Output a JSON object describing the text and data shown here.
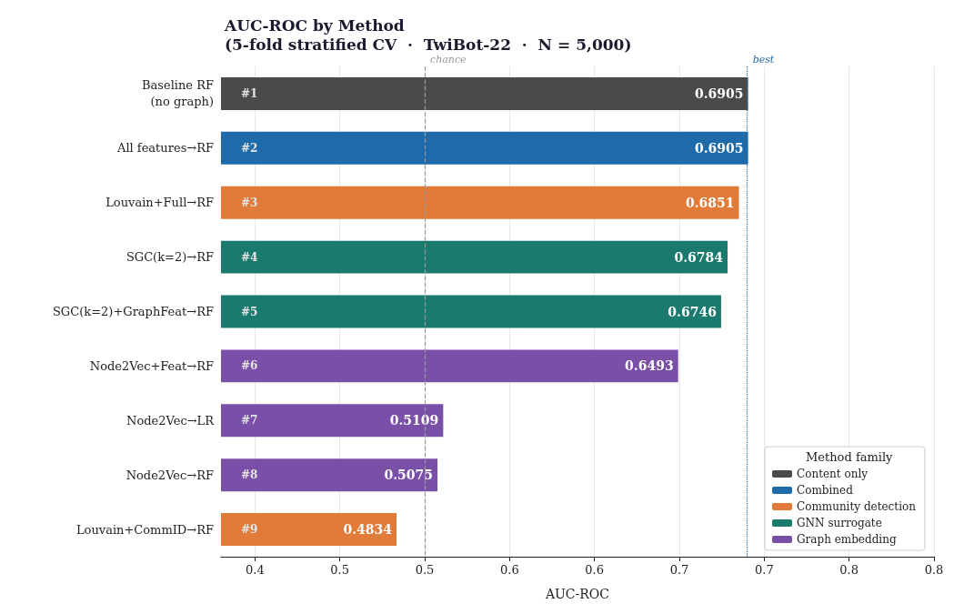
{
  "chart_data": {
    "type": "bar",
    "orientation": "horizontal",
    "title": "AUC-ROC by Method",
    "subtitle": "(5-fold stratified CV  ·  TwiBot-22  ·  N = 5,000)",
    "xlabel": "AUC-ROC",
    "legend_title": "Method family",
    "categories": [
      "Baseline RF\n(no graph)",
      "All features→RF",
      "Louvain+Full→RF",
      "SGC(k=2)→RF",
      "SGC(k=2)+GraphFeat→RF",
      "Node2Vec+Feat→RF",
      "Node2Vec→LR",
      "Node2Vec→RF",
      "Louvain+CommID→RF"
    ],
    "series": [
      {
        "name": "Content only",
        "color": "#4a4a4a",
        "values": [
          0.6905,
          null,
          null,
          null,
          null,
          null,
          null,
          null,
          null
        ]
      },
      {
        "name": "Combined",
        "color": "#1f6aa8",
        "values": [
          null,
          0.6905,
          null,
          null,
          null,
          null,
          null,
          null,
          null
        ]
      },
      {
        "name": "Community detection",
        "color": "#e07b39",
        "values": [
          null,
          null,
          0.6851,
          null,
          null,
          null,
          null,
          null,
          0.4834
        ]
      },
      {
        "name": "GNN surrogate",
        "color": "#1a7a6e",
        "values": [
          null,
          null,
          null,
          0.6784,
          0.6746,
          null,
          null,
          null,
          null
        ]
      },
      {
        "name": "Graph embedding",
        "color": "#7a4fa8",
        "values": [
          null,
          null,
          null,
          null,
          null,
          0.6493,
          0.5109,
          0.5075,
          null
        ]
      }
    ],
    "data_labels": true,
    "annotations": [
      "#1",
      "#2",
      "#3",
      "#4",
      "#5",
      "#6",
      "#7",
      "#8",
      "#9"
    ],
    "ref_lines": [
      {
        "axis": "x",
        "value": 0.5,
        "label": "chance",
        "color": "#999999",
        "line_style": "dashed"
      },
      {
        "axis": "x",
        "value": 0.6905,
        "label": "best",
        "color": "#1f6aa8",
        "line_style": "dotted"
      }
    ],
    "xlim": [
      0.38,
      0.8
    ],
    "xticks": [
      0.4,
      {
        "value": 0.45,
        "label": "0.5"
      },
      0.5,
      {
        "value": 0.55,
        "label": "0.6"
      },
      0.6,
      {
        "value": 0.65,
        "label": "0.7"
      },
      0.7,
      {
        "value": 0.75,
        "label": "0.8"
      },
      0.8
    ],
    "grid": "x",
    "legend": "bottom right"
  }
}
